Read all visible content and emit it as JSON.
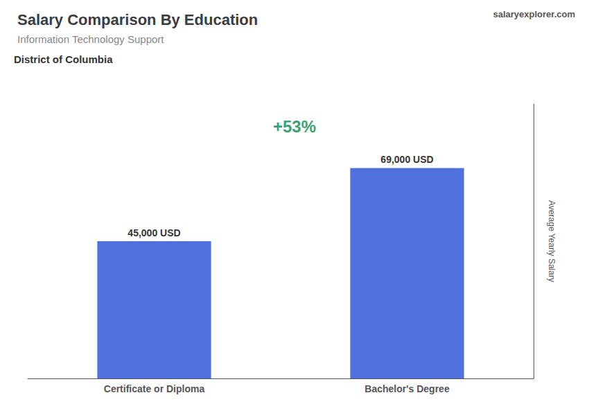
{
  "chart_data": {
    "type": "bar",
    "title": "Salary Comparison By Education",
    "subtitle": "Information Technology Support",
    "annotations": [
      "District of Columbia",
      "+53%",
      "salaryexplorer.com"
    ],
    "ylabel": "Average Yearly Salary",
    "categories": [
      "Certificate or Diploma",
      "Bachelor's Degree"
    ],
    "values": [
      45000,
      69000
    ],
    "value_labels": [
      "45,000 USD",
      "69,000 USD"
    ],
    "data_labels": true,
    "ylim": [
      0,
      90000
    ],
    "tick_labels": "x",
    "grid": false
  }
}
